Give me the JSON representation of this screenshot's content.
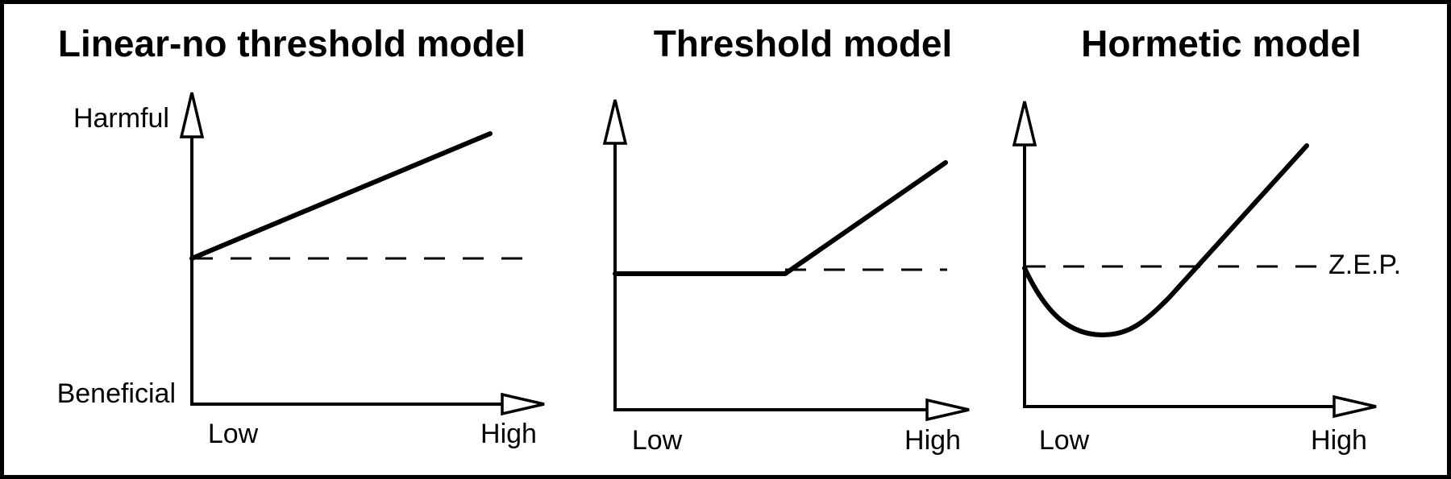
{
  "panels": [
    {
      "title": "Linear-no threshold model",
      "y_axis": {
        "top": "Harmful",
        "bottom": "Beneficial"
      },
      "x_axis": {
        "low": "Low",
        "high": "High"
      }
    },
    {
      "title": "Threshold model",
      "x_axis": {
        "low": "Low",
        "high": "High"
      }
    },
    {
      "title": "Hormetic model",
      "x_axis": {
        "low": "Low",
        "high": "High"
      },
      "annotation": "Z.E.P."
    }
  ]
}
